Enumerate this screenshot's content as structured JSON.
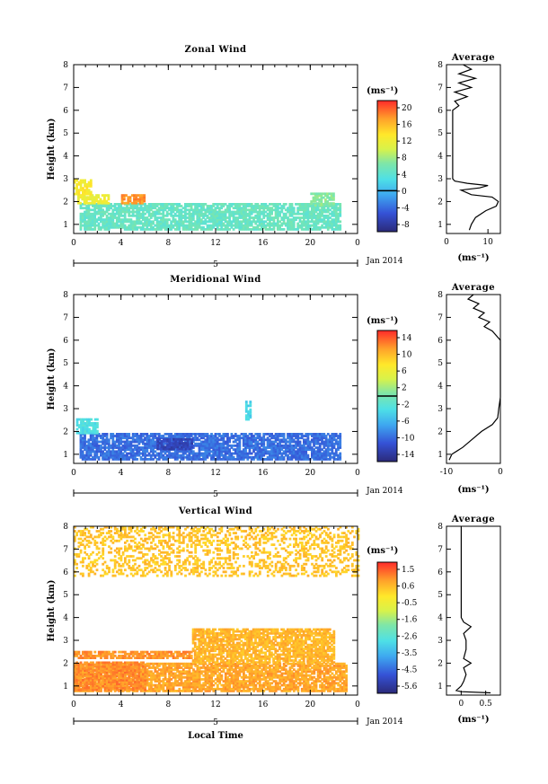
{
  "figure": {
    "panels": [
      {
        "title": "Zonal Wind",
        "ylabel": "Height (km)",
        "unit": "(ms⁻¹)",
        "date_label": "Jan 2014",
        "day_label": "5",
        "avg_title": "Average",
        "avg_xlabel": "(ms⁻¹)",
        "cbar_labels": [
          "20",
          "16",
          "12",
          "8",
          "4",
          "0",
          "-4",
          "-8"
        ]
      },
      {
        "title": "Meridional Wind",
        "ylabel": "Height (km)",
        "unit": "(ms⁻¹)",
        "date_label": "Jan 2014",
        "day_label": "5",
        "avg_title": "Average",
        "avg_xlabel": "(ms⁻¹)",
        "cbar_labels": [
          "14",
          "10",
          "6",
          "2",
          "-2",
          "-6",
          "-10",
          "-14"
        ]
      },
      {
        "title": "Vertical Wind",
        "ylabel": "Height (km)",
        "unit": "(ms⁻¹)",
        "date_label": "Jan 2014",
        "day_label": "5",
        "avg_title": "Average",
        "avg_xlabel": "(ms⁻¹)",
        "cbar_labels": [
          "1.5",
          "0.6",
          "-0.5",
          "-1.6",
          "-2.6",
          "-3.5",
          "-4.5",
          "-5.6"
        ]
      }
    ],
    "xlabel": "Local Time"
  },
  "chart_data": [
    {
      "type": "heatmap",
      "title": "Zonal Wind",
      "xlabel": "",
      "ylabel": "Height (km)",
      "xlim": [
        0,
        24
      ],
      "ylim": [
        0.6,
        8
      ],
      "x_ticks": [
        "0",
        "4",
        "8",
        "12",
        "16",
        "20",
        "0"
      ],
      "y_ticks": [
        "1",
        "2",
        "3",
        "4",
        "5",
        "6",
        "7",
        "8"
      ],
      "colorbar": {
        "unit": "(ms⁻¹)",
        "range": [
          -10,
          22
        ],
        "ticks": [
          20,
          16,
          12,
          8,
          4,
          0,
          -4,
          -8
        ],
        "contour": 0
      },
      "regions": [
        {
          "x": [
            0.5,
            22.5
          ],
          "y": [
            0.75,
            1.9
          ],
          "value": 5,
          "desc": "fill"
        },
        {
          "x": [
            0.3,
            3
          ],
          "y": [
            1.9,
            2.3
          ],
          "value": 12
        },
        {
          "x": [
            0,
            1.5
          ],
          "y": [
            2.3,
            2.9
          ],
          "value": 13
        },
        {
          "x": [
            4,
            6
          ],
          "y": [
            1.9,
            2.25
          ],
          "value": 18
        },
        {
          "x": [
            20,
            22
          ],
          "y": [
            1.8,
            2.35
          ],
          "value": 7
        }
      ],
      "average_profile": {
        "title": "Average",
        "xlabel": "(ms⁻¹)",
        "xlim": [
          0,
          13
        ],
        "x_ticks": [
          "0",
          "10"
        ],
        "height": [
          0.75,
          1.0,
          1.3,
          1.6,
          1.8,
          2.0,
          2.2,
          2.3,
          2.5,
          2.6,
          2.7,
          2.8,
          2.9,
          3.0,
          3.3,
          4.0,
          5.0,
          6.0,
          6.2,
          6.4,
          6.6,
          6.8,
          7.0,
          7.2,
          7.4,
          7.6,
          7.8,
          8.0
        ],
        "value": [
          5.5,
          6.0,
          7.0,
          9.5,
          12.0,
          12.5,
          11.0,
          6.0,
          3.5,
          8.0,
          10.0,
          5.0,
          2.0,
          1.5,
          1.5,
          1.5,
          1.5,
          1.5,
          3.0,
          2.0,
          5.0,
          2.0,
          6.0,
          3.0,
          7.0,
          3.0,
          6.0,
          4.0
        ]
      }
    },
    {
      "type": "heatmap",
      "title": "Meridional Wind",
      "xlabel": "",
      "ylabel": "Height (km)",
      "xlim": [
        0,
        24
      ],
      "ylim": [
        0.6,
        8
      ],
      "x_ticks": [
        "0",
        "4",
        "8",
        "12",
        "16",
        "20",
        "0"
      ],
      "y_ticks": [
        "1",
        "2",
        "3",
        "4",
        "5",
        "6",
        "7",
        "8"
      ],
      "colorbar": {
        "unit": "(ms⁻¹)",
        "range": [
          -16,
          16
        ],
        "ticks": [
          14,
          10,
          6,
          2,
          -2,
          -6,
          -10,
          -14
        ],
        "contour": 0
      },
      "regions": [
        {
          "x": [
            0.5,
            22.5
          ],
          "y": [
            0.75,
            1.9
          ],
          "value": -10
        },
        {
          "x": [
            0.2,
            2
          ],
          "y": [
            1.9,
            2.5
          ],
          "value": -3
        },
        {
          "x": [
            7,
            10
          ],
          "y": [
            1.2,
            1.7
          ],
          "value": -13
        },
        {
          "x": [
            14.5,
            15
          ],
          "y": [
            2.5,
            3.3
          ],
          "value": -4
        }
      ],
      "average_profile": {
        "title": "Average",
        "xlabel": "(ms⁻¹)",
        "xlim": [
          -10,
          0
        ],
        "x_ticks": [
          "-10",
          "0"
        ],
        "height": [
          0.75,
          1.0,
          1.3,
          1.6,
          2.0,
          2.3,
          2.6,
          3.0,
          3.5,
          4.0,
          5.0,
          6.0,
          6.4,
          6.6,
          6.8,
          7.0,
          7.2,
          7.4,
          7.6,
          7.8,
          8.0
        ],
        "value": [
          -9.5,
          -9.0,
          -7.0,
          -5.5,
          -3.5,
          -1.5,
          -0.5,
          -0.3,
          0.0,
          0.0,
          0.0,
          0.0,
          -1.5,
          -3.0,
          -2.0,
          -4.0,
          -3.0,
          -5.0,
          -4.0,
          -6.0,
          -5.0
        ]
      }
    },
    {
      "type": "heatmap",
      "title": "Vertical Wind",
      "xlabel": "Local Time",
      "ylabel": "Height (km)",
      "xlim": [
        0,
        24
      ],
      "ylim": [
        0.6,
        8
      ],
      "x_ticks": [
        "0",
        "4",
        "8",
        "12",
        "16",
        "20",
        "0"
      ],
      "y_ticks": [
        "1",
        "2",
        "3",
        "4",
        "5",
        "6",
        "7",
        "8"
      ],
      "colorbar": {
        "unit": "(ms⁻¹)",
        "range": [
          -6,
          2
        ],
        "ticks": [
          1.5,
          0.6,
          -0.5,
          -1.6,
          -2.6,
          -3.5,
          -4.5,
          -5.6
        ]
      },
      "regions": [
        {
          "x": [
            0,
            23
          ],
          "y": [
            0.75,
            2.0
          ],
          "value": 0.8
        },
        {
          "x": [
            0,
            6
          ],
          "y": [
            0.8,
            2.0
          ],
          "value": 1.1
        },
        {
          "x": [
            0,
            10
          ],
          "y": [
            2.2,
            2.5
          ],
          "value": 1.0
        },
        {
          "x": [
            10,
            22
          ],
          "y": [
            2.0,
            3.5
          ],
          "value": 0.6
        },
        {
          "x": [
            0,
            24
          ],
          "y": [
            5.8,
            8.0
          ],
          "value": 0.4
        }
      ],
      "average_profile": {
        "title": "Average",
        "xlabel": "(ms⁻¹)",
        "xlim": [
          -0.3,
          0.8
        ],
        "x_ticks": [
          "0",
          "0.5"
        ],
        "height": [
          0.7,
          0.75,
          0.8,
          1.0,
          1.2,
          1.5,
          1.8,
          2.0,
          2.2,
          2.6,
          3.0,
          3.3,
          3.6,
          3.8,
          4.0,
          5.0,
          6.0,
          7.0,
          8.0
        ],
        "value": [
          0.6,
          0.0,
          -0.1,
          0.0,
          0.05,
          0.1,
          0.05,
          0.2,
          0.05,
          0.1,
          0.1,
          0.05,
          0.2,
          0.05,
          0.0,
          0.0,
          0.0,
          0.0,
          0.0
        ]
      }
    }
  ]
}
